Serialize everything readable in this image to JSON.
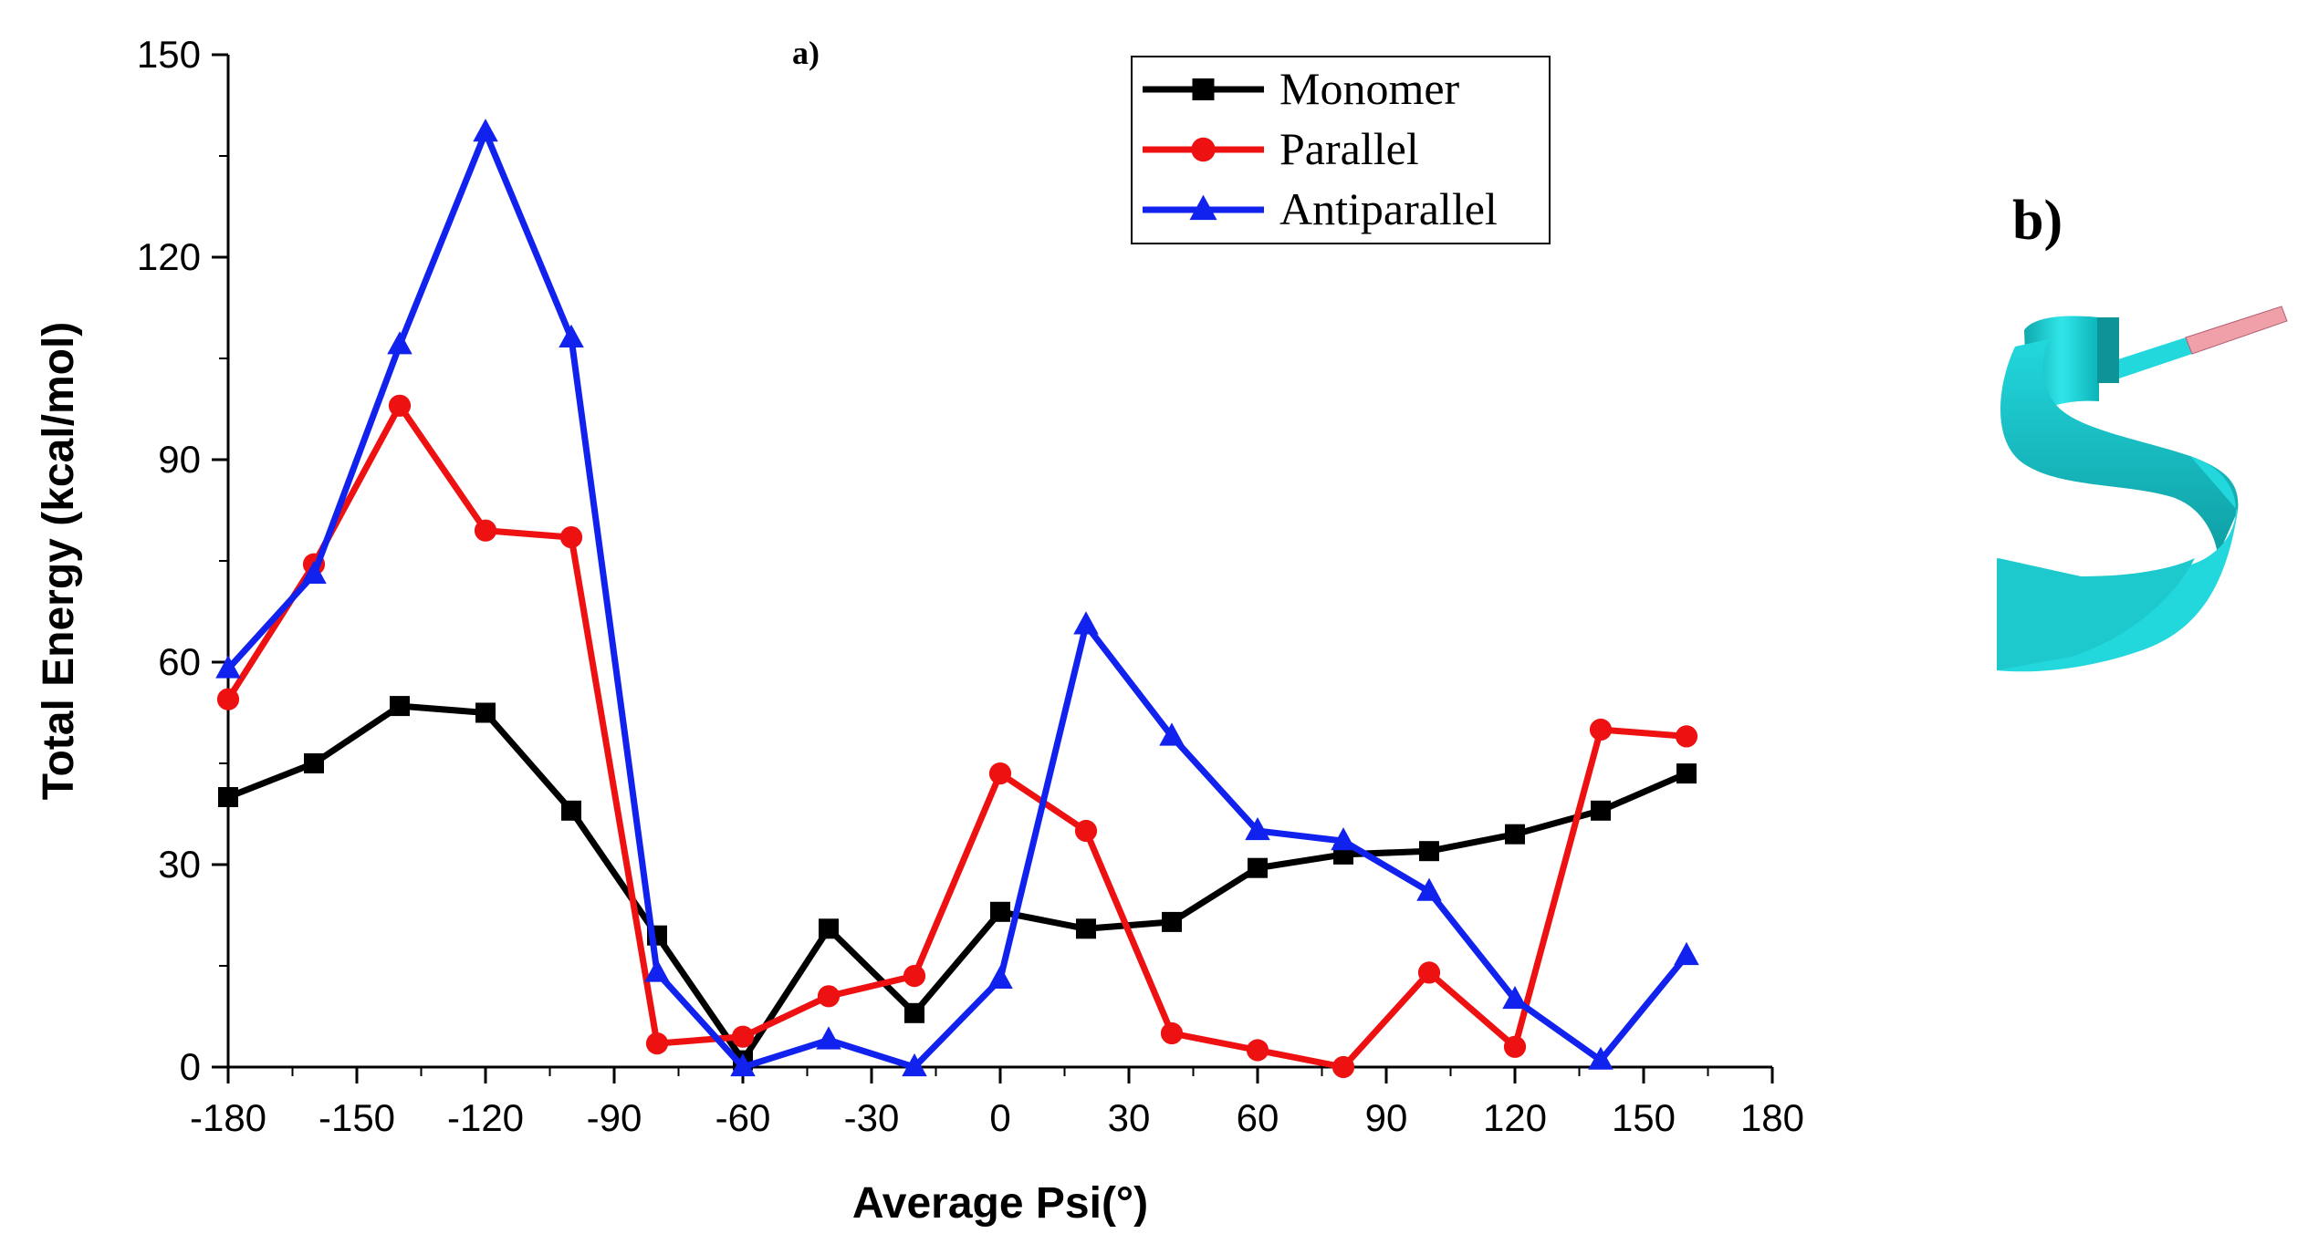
{
  "chart_data": {
    "type": "line",
    "title": "",
    "panel_labels": {
      "a": "a)",
      "b": "b)"
    },
    "xlabel": "Average Psi(°)",
    "ylabel": "Total Energy (kcal/mol)",
    "xlim": [
      -180,
      180
    ],
    "ylim": [
      0,
      150
    ],
    "xticks": [
      -180,
      -150,
      -120,
      -90,
      -60,
      -30,
      0,
      30,
      60,
      90,
      120,
      150,
      180
    ],
    "yticks": [
      0,
      30,
      60,
      90,
      120,
      150
    ],
    "x": [
      -180,
      -160,
      -140,
      -120,
      -100,
      -80,
      -60,
      -40,
      -20,
      0,
      20,
      40,
      60,
      80,
      100,
      120,
      140,
      160
    ],
    "legend_position": "top-center",
    "series": [
      {
        "name": "Monomer",
        "color": "#000000",
        "marker": "square",
        "values": [
          40,
          45,
          53.5,
          52.5,
          38,
          19.5,
          1,
          20.5,
          8,
          23,
          20.5,
          21.5,
          29.5,
          31.5,
          32,
          34.5,
          38,
          43.5
        ]
      },
      {
        "name": "Parallel",
        "color": "#ee1111",
        "marker": "circle",
        "values": [
          54.5,
          74.5,
          98,
          79.5,
          78.5,
          3.5,
          4.5,
          10.5,
          13.5,
          43.5,
          35,
          5,
          2.5,
          0,
          14,
          3,
          50,
          49
        ]
      },
      {
        "name": "Antiparallel",
        "color": "#1122ee",
        "marker": "triangle",
        "values": [
          59,
          73,
          107,
          138.5,
          108,
          14,
          0,
          4,
          0,
          13,
          65.5,
          49,
          35,
          33.5,
          26,
          10,
          1,
          16.5
        ]
      }
    ]
  },
  "figure_b": {
    "ribbon_color": "#22d8dd",
    "tip_color": "#f0a0a8"
  }
}
